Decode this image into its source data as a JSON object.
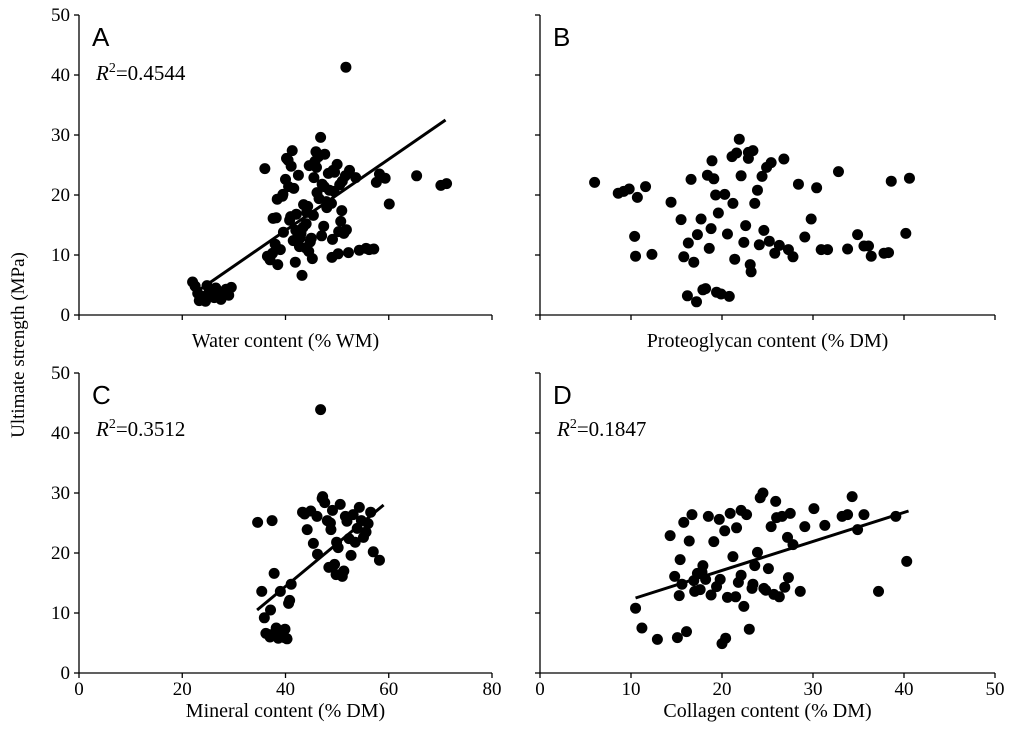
{
  "y_axis_label": "Ultimate strength (MPa)",
  "chart_data": [
    {
      "type": "scatter",
      "panel": "A",
      "title": "",
      "xlabel": "Water content (% WM)",
      "ylabel": "Ultimate strength (MPa)",
      "xlim": [
        0,
        80
      ],
      "ylim": [
        0,
        50
      ],
      "yticks": [
        0,
        10,
        20,
        30,
        40,
        50
      ],
      "xticks": [],
      "r2_label": "=0.4544",
      "fit_line": {
        "x": [
          23,
          71
        ],
        "y": [
          4.0,
          32.5
        ]
      },
      "points": {
        "x": [
          22,
          22.5,
          23,
          23.5,
          24,
          24.5,
          25,
          25.5,
          26,
          26.5,
          27,
          27.5,
          28,
          28.5,
          29,
          29.5,
          23.3,
          24.8,
          26.2,
          27.8,
          36,
          36.5,
          37,
          37.5,
          38,
          38.5,
          39,
          39.5,
          40,
          40.5,
          41,
          41.5,
          42,
          42.5,
          43,
          43.5,
          44,
          44.5,
          45,
          45.5,
          46,
          46.5,
          47,
          47.5,
          48,
          48.5,
          49,
          49.5,
          50,
          50.5,
          51,
          40.2,
          41.3,
          42.1,
          43.4,
          44.6,
          45.2,
          46.8,
          47.1,
          48.3,
          49.4,
          50.2,
          51.6,
          39.6,
          40.8,
          42.7,
          44.1,
          45.7,
          47.6,
          48.9,
          50.7,
          38.2,
          39.4,
          41.6,
          43.2,
          44.8,
          46.4,
          47.9,
          49.2,
          50.9,
          42.4,
          43.9,
          45.4,
          41.1,
          46.1,
          51.3,
          51.8,
          52.4,
          53.6,
          54.3,
          55.6,
          56.2,
          57.1,
          57.6,
          58.2,
          59.3,
          60.1,
          65.4,
          70.1,
          71.2,
          51.7,
          52.2,
          50.3,
          49.1,
          47.4,
          45.9,
          44.3,
          42.9,
          41.9,
          38.4,
          37.6,
          40.6
        ],
        "y": [
          5.5,
          4.8,
          3.6,
          3.2,
          2.8,
          2.3,
          3.5,
          4.2,
          3.8,
          4.5,
          3.1,
          2.6,
          3.9,
          4.3,
          3.3,
          4.6,
          2.4,
          4.9,
          2.9,
          3.7,
          24.4,
          9.8,
          9.2,
          10.3,
          11.8,
          8.4,
          10.9,
          20.1,
          22.6,
          25.8,
          16.4,
          12.4,
          14.1,
          23.3,
          13.6,
          18.4,
          15.2,
          10.6,
          12.8,
          22.9,
          24.6,
          19.4,
          13.2,
          21.4,
          17.9,
          20.8,
          9.6,
          23.8,
          25.1,
          21.7,
          22.3,
          26.1,
          27.4,
          16.8,
          14.6,
          24.9,
          9.4,
          29.6,
          21.8,
          23.6,
          20.6,
          10.2,
          23.2,
          13.8,
          15.8,
          11.4,
          17.1,
          25.6,
          26.8,
          18.6,
          15.6,
          16.2,
          19.8,
          21.1,
          6.6,
          12.2,
          26.4,
          18.9,
          24.1,
          17.4,
          13.1,
          11.2,
          16.6,
          24.8,
          20.4,
          13.6,
          14.2,
          24.1,
          22.9,
          10.8,
          11.1,
          10.9,
          11.0,
          22.1,
          23.5,
          22.8,
          18.5,
          23.2,
          21.6,
          21.9,
          41.3,
          10.4,
          13.9,
          12.6,
          14.8,
          27.2,
          18.1,
          12.9,
          8.8,
          19.3,
          16.1,
          21.4
        ]
      }
    },
    {
      "type": "scatter",
      "panel": "B",
      "title": "",
      "xlabel": "Proteoglycan content (% DM)",
      "ylabel": "",
      "xlim": [
        0,
        50
      ],
      "ylim": [
        0,
        50
      ],
      "yticks": [],
      "xticks": [],
      "r2_label": "",
      "fit_line": null,
      "points": {
        "x": [
          6.0,
          8.6,
          9.2,
          9.8,
          10.4,
          10.5,
          10.7,
          11.6,
          12.3,
          14.4,
          15.5,
          15.8,
          16.2,
          16.3,
          16.6,
          16.9,
          17.3,
          17.7,
          17.9,
          18.2,
          18.4,
          18.6,
          18.8,
          18.9,
          19.1,
          19.3,
          19.6,
          19.9,
          20.3,
          20.6,
          20.8,
          21.1,
          21.4,
          21.6,
          21.9,
          22.1,
          22.4,
          22.6,
          22.9,
          23.1,
          23.4,
          23.6,
          23.9,
          24.1,
          24.4,
          24.6,
          24.9,
          25.2,
          25.4,
          25.8,
          26.3,
          26.8,
          27.3,
          27.8,
          28.4,
          29.1,
          29.8,
          30.4,
          30.9,
          31.6,
          32.8,
          33.8,
          34.9,
          35.6,
          36.1,
          36.4,
          37.8,
          38.3,
          38.6,
          40.2,
          40.6,
          17.2,
          19.4,
          21.2,
          23.2,
          22.9
        ],
        "y": [
          22.1,
          20.3,
          20.6,
          21.0,
          13.1,
          9.8,
          19.6,
          21.4,
          10.1,
          18.8,
          15.9,
          9.7,
          3.2,
          12.0,
          22.6,
          8.8,
          13.4,
          16.0,
          4.2,
          4.4,
          23.3,
          11.1,
          14.4,
          25.7,
          22.7,
          20.0,
          17.0,
          3.5,
          20.1,
          13.5,
          3.1,
          26.4,
          9.3,
          27.0,
          29.3,
          23.2,
          12.1,
          14.9,
          26.1,
          8.4,
          27.4,
          18.6,
          20.8,
          11.7,
          23.1,
          14.1,
          24.6,
          12.3,
          25.4,
          10.3,
          11.6,
          26.0,
          10.9,
          9.7,
          21.8,
          13.0,
          16.0,
          21.2,
          10.9,
          10.9,
          23.9,
          11.0,
          13.4,
          11.5,
          11.5,
          9.8,
          10.3,
          10.4,
          22.3,
          13.6,
          22.8,
          2.2,
          3.8,
          18.6,
          7.2,
          27.1
        ]
      }
    },
    {
      "type": "scatter",
      "panel": "C",
      "title": "",
      "xlabel": "Mineral content (% DM)",
      "ylabel": "",
      "xlim": [
        0,
        80
      ],
      "ylim": [
        0,
        50
      ],
      "yticks": [
        0,
        10,
        20,
        30,
        40,
        50
      ],
      "xticks": [
        0,
        20,
        40,
        60,
        80
      ],
      "r2_label": "=0.3512",
      "fit_line": {
        "x": [
          34.5,
          59
        ],
        "y": [
          10.5,
          28.0
        ]
      },
      "points": {
        "x": [
          34.6,
          35.4,
          35.9,
          36.2,
          36.8,
          37.1,
          37.4,
          37.8,
          38.2,
          38.6,
          39.0,
          39.4,
          39.9,
          40.3,
          40.6,
          40.8,
          41.1,
          43.3,
          44.2,
          45.4,
          46.1,
          46.8,
          47.2,
          47.6,
          48.1,
          48.4,
          48.8,
          49.1,
          49.5,
          49.8,
          50.2,
          50.6,
          51.0,
          51.3,
          51.6,
          51.9,
          52.3,
          52.7,
          53.1,
          53.5,
          53.9,
          54.3,
          54.7,
          55.1,
          55.6,
          56.0,
          56.5,
          57.0,
          58.2,
          47.1,
          48.7,
          49.9,
          50.8,
          46.2,
          44.9,
          43.7,
          37.0,
          38.1,
          39.8
        ],
        "y": [
          25.1,
          13.6,
          9.2,
          6.6,
          6.4,
          10.5,
          25.4,
          16.6,
          7.5,
          5.8,
          13.6,
          6.9,
          7.3,
          5.7,
          11.6,
          12.1,
          14.8,
          26.8,
          23.9,
          21.6,
          26.1,
          43.9,
          29.4,
          28.4,
          25.4,
          17.6,
          23.9,
          27.1,
          18.1,
          16.4,
          20.9,
          28.1,
          16.1,
          17.0,
          26.1,
          25.3,
          22.4,
          19.6,
          26.4,
          21.8,
          24.1,
          27.6,
          25.4,
          22.6,
          23.5,
          24.9,
          26.8,
          20.2,
          18.8,
          29.1,
          25.0,
          21.8,
          16.5,
          19.8,
          27.0,
          26.5,
          6.0,
          6.9,
          5.9
        ]
      }
    },
    {
      "type": "scatter",
      "panel": "D",
      "title": "",
      "xlabel": "Collagen content (% DM)",
      "ylabel": "",
      "xlim": [
        0,
        50
      ],
      "ylim": [
        0,
        50
      ],
      "yticks": [],
      "xticks": [
        0,
        10,
        20,
        30,
        40,
        50
      ],
      "r2_label": "=0.1847",
      "fit_line": {
        "x": [
          10.5,
          40.5
        ],
        "y": [
          12.5,
          27.0
        ]
      },
      "points": {
        "x": [
          10.5,
          11.2,
          12.9,
          14.3,
          14.8,
          15.1,
          15.3,
          15.6,
          15.8,
          16.1,
          16.4,
          16.7,
          17.0,
          17.3,
          17.6,
          17.9,
          18.2,
          18.5,
          18.8,
          19.1,
          19.4,
          19.7,
          20.0,
          20.3,
          20.6,
          20.9,
          21.2,
          21.5,
          21.8,
          22.1,
          22.4,
          22.7,
          23.0,
          23.3,
          23.6,
          23.9,
          24.2,
          24.5,
          24.8,
          25.1,
          25.4,
          25.7,
          26.0,
          26.3,
          26.6,
          26.9,
          27.2,
          27.5,
          27.8,
          28.6,
          29.1,
          30.1,
          31.3,
          33.2,
          33.8,
          34.3,
          34.9,
          35.6,
          37.2,
          39.1,
          40.3,
          15.4,
          16.9,
          19.8,
          21.6,
          23.4,
          25.9,
          27.3,
          20.4,
          22.1,
          24.6,
          17.8
        ],
        "y": [
          10.8,
          7.5,
          5.6,
          22.9,
          16.1,
          5.9,
          12.9,
          14.8,
          25.1,
          6.9,
          22.0,
          26.4,
          13.6,
          16.6,
          13.9,
          17.9,
          15.6,
          26.1,
          13.0,
          21.9,
          14.4,
          25.6,
          4.9,
          23.7,
          12.6,
          26.6,
          19.4,
          12.7,
          15.1,
          27.1,
          11.1,
          26.4,
          7.3,
          14.1,
          17.9,
          20.1,
          29.2,
          30.0,
          13.8,
          17.4,
          24.4,
          13.1,
          25.9,
          12.7,
          26.1,
          14.3,
          22.6,
          26.6,
          21.4,
          13.6,
          24.4,
          27.4,
          24.6,
          26.1,
          26.4,
          29.4,
          23.9,
          26.4,
          13.6,
          26.1,
          18.6,
          18.9,
          15.4,
          15.6,
          24.2,
          14.8,
          28.6,
          15.9,
          5.8,
          16.3,
          14.1,
          16.8
        ]
      }
    }
  ]
}
